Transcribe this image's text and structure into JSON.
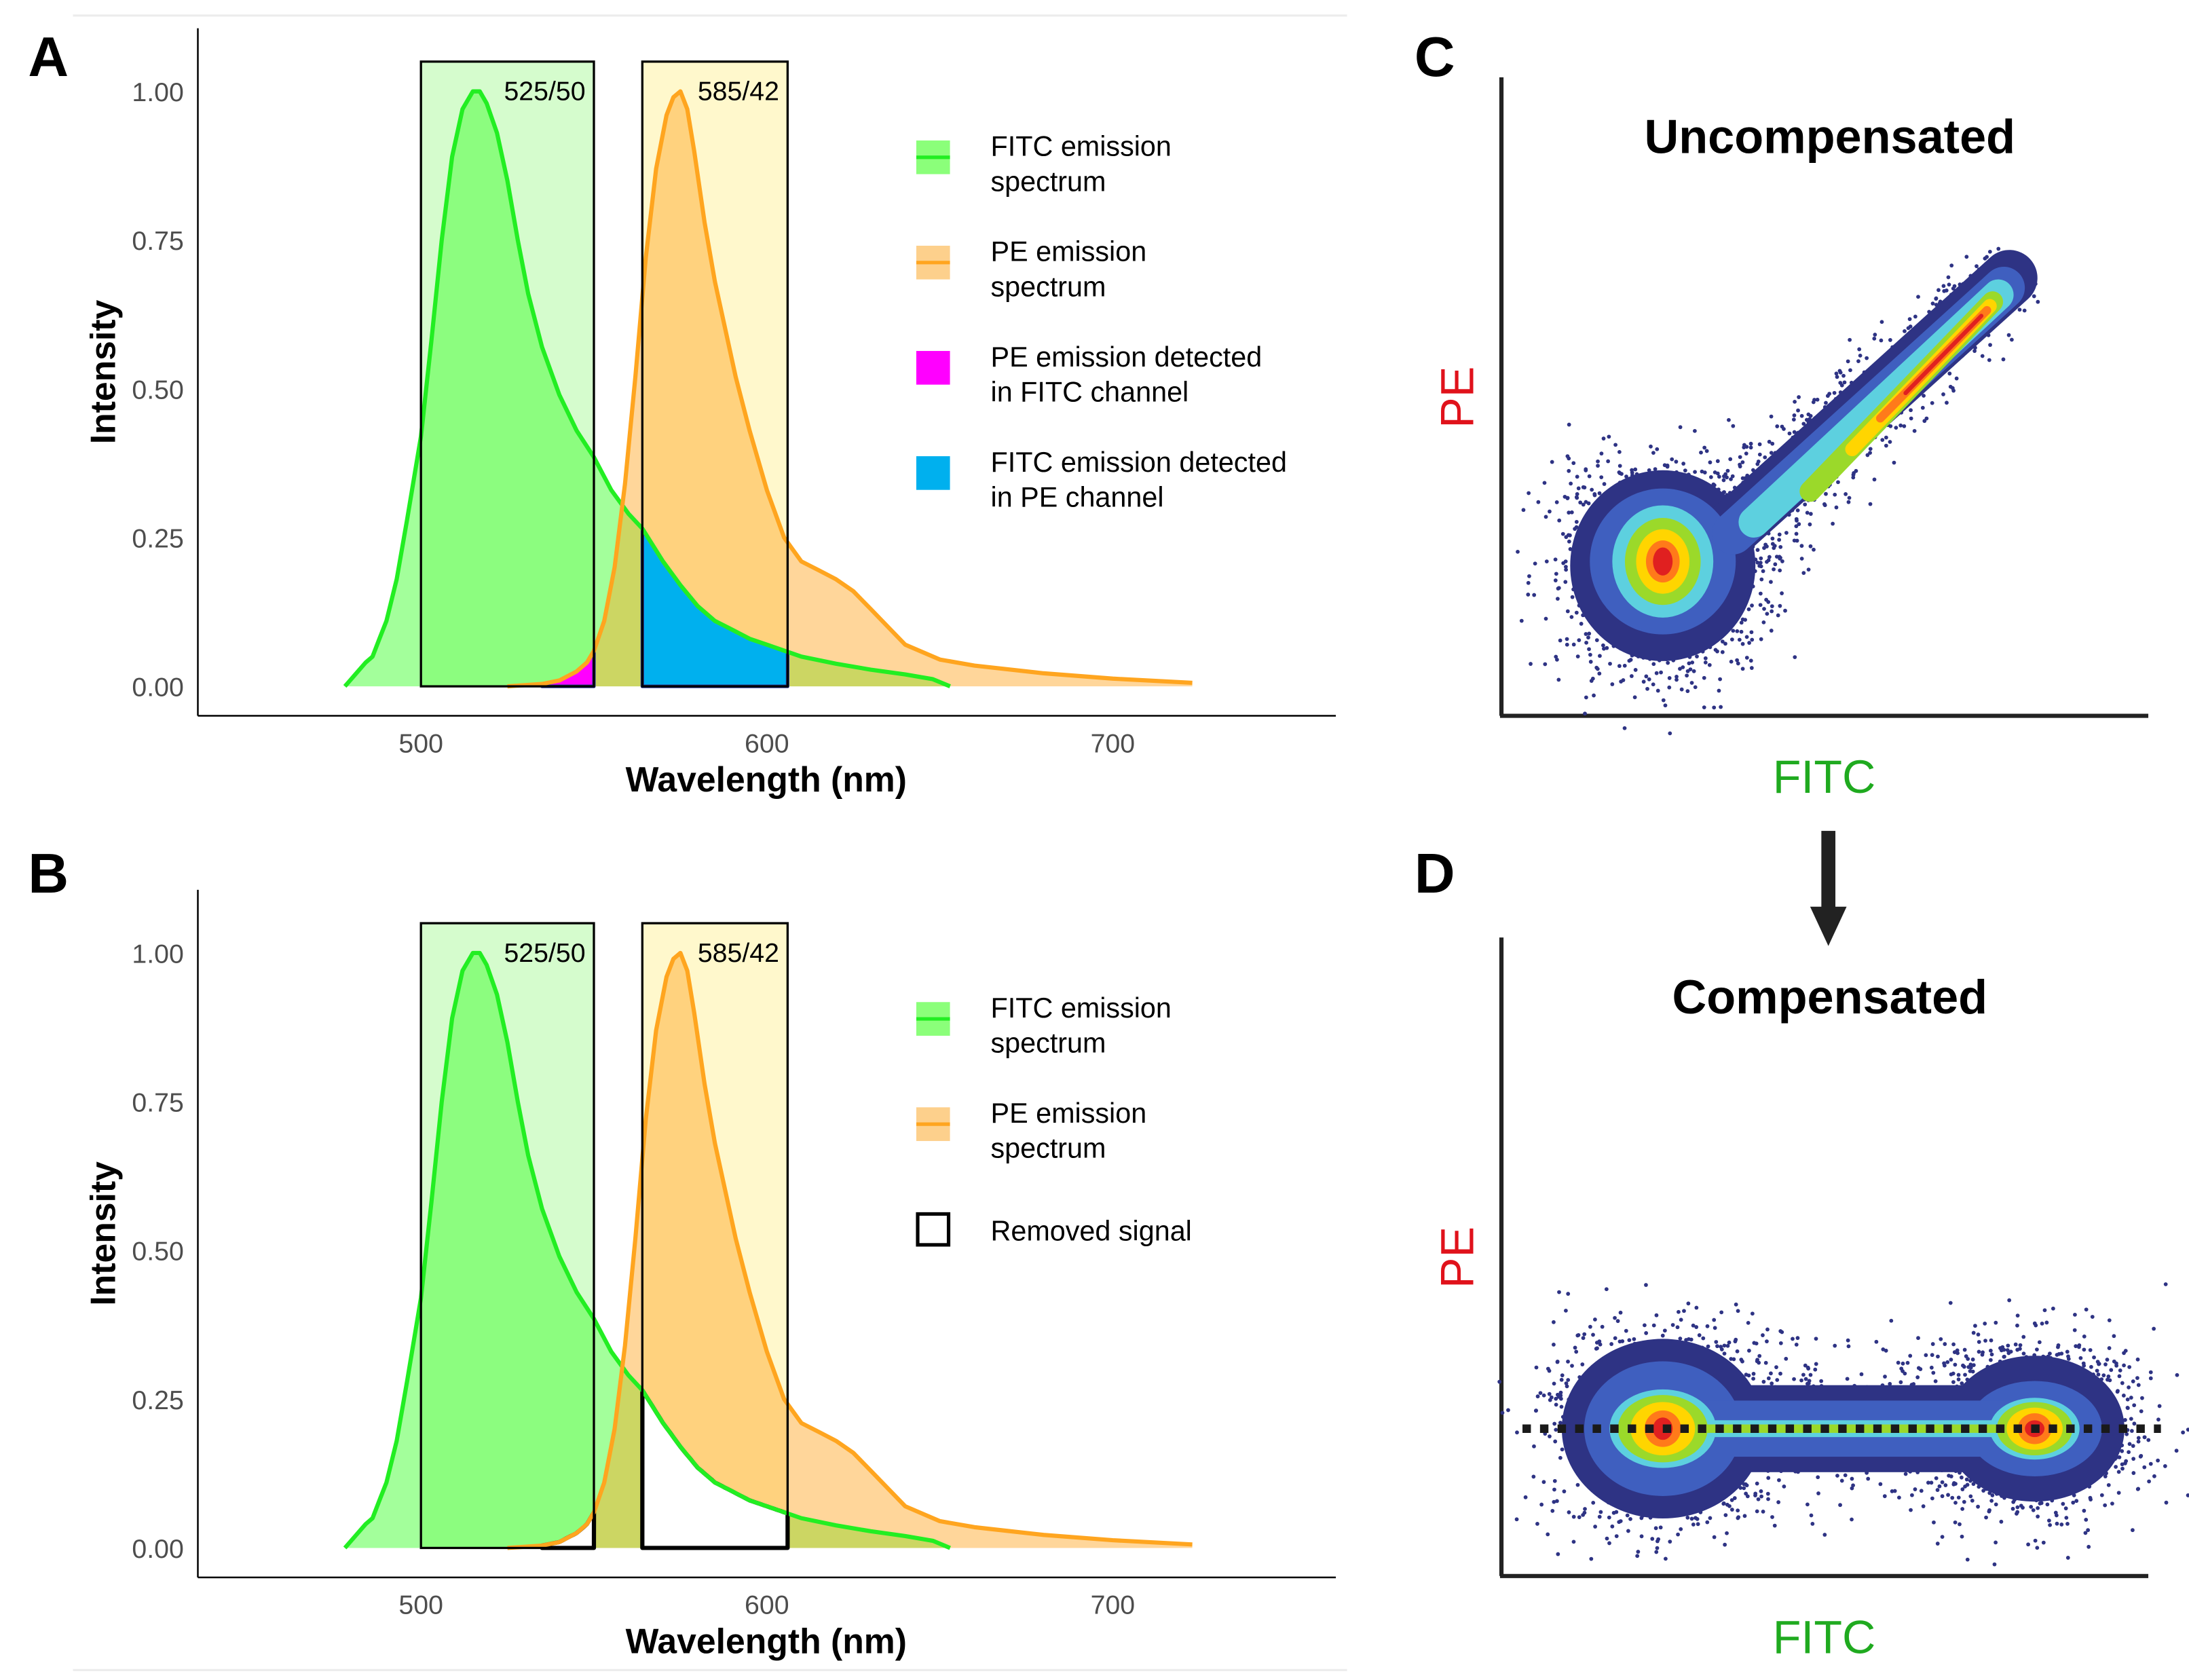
{
  "panels": {
    "a": "A",
    "b": "B",
    "c": "C",
    "d": "D"
  },
  "chart_data": [
    {
      "panel": "A",
      "type": "area",
      "xlabel": "Wavelength (nm)",
      "ylabel": "Intensity",
      "xlim": [
        435,
        765
      ],
      "ylim": [
        -0.05,
        1.1
      ],
      "xticks": [
        500,
        600,
        700
      ],
      "xtick_labels": [
        "500",
        "600",
        "700"
      ],
      "yticks": [
        0,
        0.25,
        0.5,
        0.75,
        1.0
      ],
      "ytick_labels": [
        "0.00",
        "0.25",
        "0.50",
        "0.75",
        "1.00"
      ],
      "grid": false,
      "legend_position": "right",
      "filters": [
        {
          "label": "525/50",
          "range": [
            500,
            550
          ],
          "color": "#d5fccd"
        },
        {
          "label": "585/42",
          "range": [
            564,
            606
          ],
          "color": "#fff8cc"
        }
      ],
      "series": [
        {
          "name": "FITC emission spectrum",
          "line_color": "#22ee22",
          "fill_color": "#33ff22",
          "x": [
            478,
            481,
            484,
            486,
            488,
            490,
            493,
            496,
            500,
            503,
            506,
            509,
            512,
            515,
            517,
            519,
            522,
            525,
            528,
            531,
            535,
            540,
            545,
            550,
            555,
            560,
            564,
            570,
            575,
            580,
            585,
            590,
            595,
            600,
            610,
            620,
            630,
            640,
            648,
            653
          ],
          "y": [
            0,
            0.02,
            0.04,
            0.05,
            0.08,
            0.11,
            0.18,
            0.28,
            0.42,
            0.58,
            0.75,
            0.89,
            0.97,
            1.0,
            1.0,
            0.98,
            0.93,
            0.85,
            0.75,
            0.66,
            0.57,
            0.49,
            0.43,
            0.385,
            0.33,
            0.29,
            0.265,
            0.21,
            0.17,
            0.135,
            0.11,
            0.095,
            0.08,
            0.07,
            0.05,
            0.038,
            0.028,
            0.02,
            0.012,
            0.0
          ]
        },
        {
          "name": "PE emission spectrum",
          "line_color": "#ffa51f",
          "fill_color": "#ffa51f",
          "x": [
            525,
            535,
            540,
            545,
            548,
            550,
            553,
            556,
            559,
            562,
            565,
            568,
            571,
            573,
            575,
            577,
            579,
            582,
            585,
            588,
            591,
            595,
            600,
            605,
            610,
            615,
            620,
            625,
            630,
            635,
            640,
            650,
            660,
            680,
            700,
            723
          ],
          "y": [
            0,
            0.004,
            0.01,
            0.025,
            0.04,
            0.06,
            0.11,
            0.2,
            0.34,
            0.52,
            0.72,
            0.87,
            0.96,
            0.99,
            1.0,
            0.97,
            0.9,
            0.78,
            0.68,
            0.6,
            0.52,
            0.43,
            0.33,
            0.25,
            0.21,
            0.195,
            0.18,
            0.16,
            0.13,
            0.1,
            0.07,
            0.045,
            0.035,
            0.022,
            0.013,
            0.006
          ]
        }
      ],
      "highlights": [
        {
          "label": "PE emission detected in FITC channel",
          "series": "PE emission spectrum",
          "range": [
            535,
            550
          ],
          "color": "#ff00ff"
        },
        {
          "label": "FITC emission detected in PE channel",
          "series": "FITC emission spectrum",
          "range": [
            564,
            606
          ],
          "color": "#00b0ee"
        }
      ],
      "legend": [
        {
          "line1": "FITC emission",
          "line2": "spectrum",
          "key": "line-fill",
          "fill": "#8bff7a",
          "line": "#22ee22"
        },
        {
          "line1": "PE emission",
          "line2": "spectrum",
          "key": "line-fill",
          "fill": "#fdd08c",
          "line": "#ffa51f"
        },
        {
          "line1": "PE emission detected",
          "line2": "in FITC channel",
          "key": "square",
          "fill": "#ff00ff"
        },
        {
          "line1": "FITC emission detected",
          "line2": "in PE channel",
          "key": "square",
          "fill": "#00b0ee"
        }
      ]
    },
    {
      "panel": "B",
      "type": "area",
      "xlabel": "Wavelength (nm)",
      "ylabel": "Intensity",
      "xlim": [
        435,
        765
      ],
      "ylim": [
        -0.05,
        1.1
      ],
      "xticks": [
        500,
        600,
        700
      ],
      "xtick_labels": [
        "500",
        "600",
        "700"
      ],
      "yticks": [
        0,
        0.25,
        0.5,
        0.75,
        1.0
      ],
      "ytick_labels": [
        "0.00",
        "0.25",
        "0.50",
        "0.75",
        "1.00"
      ],
      "grid": false,
      "legend_position": "right",
      "filters": [
        {
          "label": "525/50",
          "range": [
            500,
            550
          ],
          "color": "#d5fccd"
        },
        {
          "label": "585/42",
          "range": [
            564,
            606
          ],
          "color": "#fff8cc"
        }
      ],
      "series": "same as panel A",
      "highlights": [
        {
          "label": "Removed signal",
          "series": "PE emission spectrum",
          "range": [
            535,
            550
          ],
          "color": "#ffffff"
        },
        {
          "label": "Removed signal",
          "series": "FITC emission spectrum",
          "range": [
            564,
            606
          ],
          "color": "#ffffff"
        }
      ],
      "legend": [
        {
          "line1": "FITC emission",
          "line2": "spectrum",
          "key": "line-fill",
          "fill": "#8bff7a",
          "line": "#22ee22"
        },
        {
          "line1": "PE emission",
          "line2": "spectrum",
          "key": "line-fill",
          "fill": "#fdd08c",
          "line": "#ffa51f"
        },
        {
          "line1": "Removed signal",
          "line2": "",
          "key": "outline-square",
          "fill": "#ffffff"
        }
      ]
    }
  ],
  "flow": {
    "c": {
      "title": "Uncompensated",
      "xlabel": "FITC",
      "ylabel": "PE"
    },
    "d": {
      "title": "Compensated",
      "xlabel": "FITC",
      "ylabel": "PE"
    },
    "xlabel_color": "#1faa1f",
    "ylabel_color": "#e0121b",
    "density_colors": [
      "#2e3384",
      "#3f5fbf",
      "#5dd0df",
      "#9bd92a",
      "#ffd500",
      "#ff7a1a",
      "#e02020"
    ]
  }
}
